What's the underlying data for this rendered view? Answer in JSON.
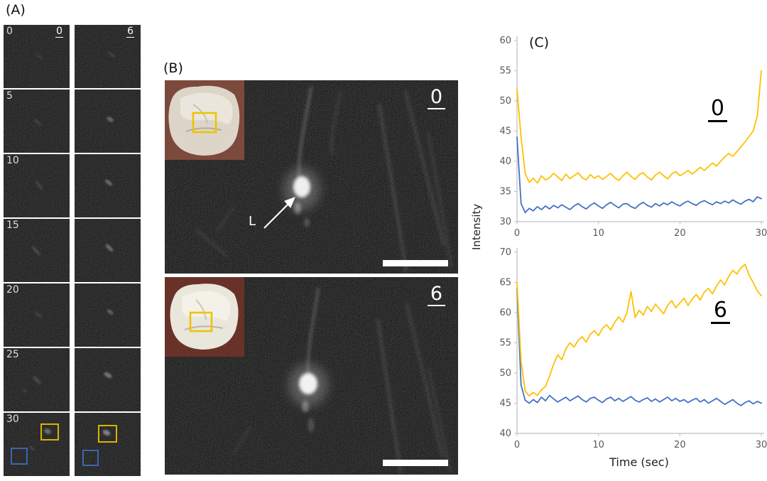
{
  "figure_labels": {
    "a": "(A)",
    "b": "(B)",
    "c": "(C)"
  },
  "panel_a": {
    "column_headers": [
      "0",
      "6"
    ],
    "row_times": [
      "0",
      "5",
      "10",
      "15",
      "20",
      "25",
      "30"
    ],
    "roi_colors": {
      "yellow": "#D9B400",
      "blue": "#3A66B0"
    }
  },
  "panel_b": {
    "image_labels": [
      "0",
      "6"
    ],
    "arrow_label": "L"
  },
  "panel_c": {
    "ylabel": "Intensity",
    "xlabel": "Time (sec)"
  },
  "chart_data": [
    {
      "type": "line",
      "label": "0",
      "x_range": [
        0,
        30
      ],
      "xticks": [
        0,
        10,
        20,
        30
      ],
      "ylim": [
        30,
        60
      ],
      "ytick_step": 5,
      "axis_color": "#BFBFBF",
      "tick_label_color": "#595959",
      "grid": false,
      "legend": "none",
      "series": [
        {
          "name": "blue",
          "color": "#4472C4",
          "values": [
            44,
            33,
            31.5,
            32.2,
            31.8,
            32.5,
            32,
            32.6,
            32.1,
            32.7,
            32.3,
            32.8,
            32.4,
            32,
            32.6,
            33,
            32.5,
            32.1,
            32.7,
            33.1,
            32.6,
            32.2,
            32.8,
            33.2,
            32.7,
            32.3,
            32.9,
            33,
            32.5,
            32.2,
            32.8,
            33.2,
            32.7,
            32.4,
            33,
            32.6,
            33.1,
            32.8,
            33.3,
            32.9,
            32.6,
            33.1,
            33.4,
            33,
            32.7,
            33.2,
            33.5,
            33.1,
            32.8,
            33.3,
            33,
            33.4,
            33.1,
            33.6,
            33.2,
            32.9,
            33.4,
            33.7,
            33.3,
            34.1,
            33.8
          ]
        },
        {
          "name": "yellow",
          "color": "#FFC000",
          "values": [
            52,
            44,
            38,
            36.5,
            37.2,
            36.4,
            37.6,
            36.9,
            37.3,
            38,
            37.4,
            36.8,
            37.9,
            37.1,
            37.6,
            38.1,
            37.3,
            36.9,
            37.8,
            37.2,
            37.6,
            37,
            37.5,
            38,
            37.3,
            36.8,
            37.6,
            38.2,
            37.5,
            37,
            37.8,
            38.1,
            37.4,
            36.9,
            37.7,
            38.2,
            37.6,
            37.1,
            37.9,
            38.3,
            37.6,
            38,
            38.5,
            37.9,
            38.4,
            39,
            38.5,
            39.1,
            39.7,
            39.2,
            40,
            40.7,
            41.3,
            40.8,
            41.6,
            42.4,
            43.2,
            44.1,
            45,
            47.5,
            55
          ]
        }
      ]
    },
    {
      "type": "line",
      "label": "6",
      "x_range": [
        0,
        30
      ],
      "xticks": [
        0,
        10,
        20,
        30
      ],
      "ylim": [
        40,
        70
      ],
      "ytick_step": 5,
      "axis_color": "#BFBFBF",
      "tick_label_color": "#595959",
      "grid": false,
      "legend": "none",
      "series": [
        {
          "name": "blue",
          "color": "#4472C4",
          "values": [
            64,
            48,
            45.5,
            45,
            45.6,
            45.1,
            46,
            45.4,
            46.3,
            45.7,
            45.2,
            45.6,
            46,
            45.4,
            45.8,
            46.2,
            45.6,
            45.2,
            45.8,
            46,
            45.5,
            45.1,
            45.7,
            46,
            45.4,
            45.8,
            45.3,
            45.7,
            46.1,
            45.5,
            45.2,
            45.6,
            45.9,
            45.3,
            45.7,
            45.2,
            45.6,
            46,
            45.4,
            45.8,
            45.3,
            45.6,
            45.1,
            45.5,
            45.8,
            45.2,
            45.6,
            45,
            45.4,
            45.8,
            45.3,
            44.8,
            45.2,
            45.6,
            45,
            44.6,
            45.1,
            45.4,
            44.9,
            45.3,
            45
          ]
        },
        {
          "name": "yellow",
          "color": "#FFC000",
          "values": [
            65,
            52,
            47,
            46.2,
            46.8,
            46.3,
            47.2,
            47.8,
            49.5,
            51.5,
            53,
            52.2,
            54,
            55,
            54.3,
            55.4,
            56,
            55.1,
            56.4,
            57,
            56.2,
            57.4,
            58,
            57.1,
            58.4,
            59.3,
            58.4,
            60,
            63.5,
            59.2,
            60.4,
            59.6,
            61,
            60.2,
            61.4,
            60.6,
            59.8,
            61.2,
            62,
            60.8,
            61.6,
            62.4,
            61.2,
            62.2,
            63,
            62.1,
            63.4,
            64,
            63.1,
            64.4,
            65.4,
            64.6,
            66,
            67,
            66.4,
            67.4,
            68,
            66.2,
            65,
            63.6,
            62.8
          ]
        }
      ]
    }
  ]
}
